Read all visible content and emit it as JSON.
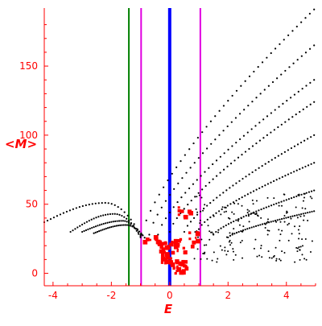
{
  "chart_data": {
    "type": "scatter",
    "title": "",
    "xlabel": "E",
    "ylabel": "<M>",
    "xlim": [
      -4.3,
      5.0
    ],
    "ylim": [
      -9,
      192
    ],
    "xticks": [
      -4,
      -2,
      0,
      2,
      4
    ],
    "yticks": [
      0,
      50,
      100,
      150
    ],
    "xtick_labels": [
      "-4",
      "-2",
      "0",
      "2",
      "4"
    ],
    "ytick_labels": [
      "0",
      "50",
      "100",
      "150"
    ],
    "grid": false,
    "colors": {
      "axis": "#ff0000",
      "black_points": "#000000",
      "red_points": "#ff0000",
      "green_line": "#008000",
      "magenta_line": "#e000e0",
      "blue_line": "#0000ff"
    },
    "vertical_lines": [
      {
        "x": -1.4,
        "color": "#008000"
      },
      {
        "x": -0.98,
        "color": "#e000e0"
      },
      {
        "x": 0.0,
        "color": "#0000ff"
      },
      {
        "x": 1.05,
        "color": "#e000e0"
      }
    ],
    "black_curves": [
      {
        "x0": -0.95,
        "x1": 4.95,
        "y0": 28,
        "y1": 191
      },
      {
        "x0": -0.7,
        "x1": 4.95,
        "y0": 28,
        "y1": 165
      },
      {
        "x0": -0.4,
        "x1": 4.95,
        "y0": 28,
        "y1": 140
      },
      {
        "x0": 0.0,
        "x1": 4.95,
        "y0": 30,
        "y1": 124
      },
      {
        "x0": 0.5,
        "x1": 4.95,
        "y0": 30,
        "y1": 100
      },
      {
        "x0": 1.0,
        "x1": 4.95,
        "y0": 32,
        "y1": 80
      },
      {
        "x0": 1.5,
        "x1": 4.95,
        "y0": 28,
        "y1": 60
      },
      {
        "x0": 2.0,
        "x1": 4.95,
        "y0": 26,
        "y1": 45
      }
    ],
    "black_arcs": [
      {
        "x0": -4.3,
        "x1": -1.0,
        "y0": 37,
        "ypeak": 51,
        "xpeak": -2.2,
        "yend": 28
      },
      {
        "x0": -3.4,
        "x1": -1.0,
        "y0": 30,
        "ypeak": 43,
        "xpeak": -1.9,
        "yend": 27
      },
      {
        "x0": -3.0,
        "x1": -1.0,
        "y0": 30,
        "ypeak": 38,
        "xpeak": -1.6,
        "yend": 26
      },
      {
        "x0": -2.6,
        "x1": -0.8,
        "y0": 29,
        "ypeak": 35,
        "xpeak": -1.5,
        "yend": 24
      }
    ],
    "red_clusters": [
      {
        "x": 0.0,
        "y": 15,
        "n": 40,
        "spread_x": 0.3,
        "spread_y": 8
      },
      {
        "x": 0.35,
        "y": 4,
        "n": 25,
        "spread_x": 0.25,
        "spread_y": 5
      },
      {
        "x": -0.6,
        "y": 24,
        "n": 12,
        "spread_x": 0.3,
        "spread_y": 3
      },
      {
        "x": 0.6,
        "y": 22,
        "n": 14,
        "spread_x": 0.4,
        "spread_y": 8
      },
      {
        "x": 0.5,
        "y": 45,
        "n": 8,
        "spread_x": 0.3,
        "spread_y": 5
      }
    ]
  }
}
